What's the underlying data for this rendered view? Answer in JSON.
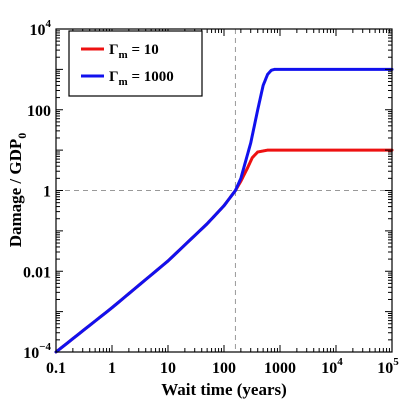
{
  "chart_data": {
    "type": "line",
    "xlabel": "Wait time (years)",
    "ylabel": {
      "main": "Damage / GDP",
      "sub": "0"
    },
    "x_scale": "log",
    "y_scale": "log",
    "xlim": [
      0.1,
      100000
    ],
    "ylim": [
      0.0001,
      10000
    ],
    "x_ticks": [
      {
        "value": 0.1,
        "base": "0.1",
        "exp": ""
      },
      {
        "value": 1,
        "base": "1",
        "exp": ""
      },
      {
        "value": 10,
        "base": "10",
        "exp": ""
      },
      {
        "value": 100,
        "base": "100",
        "exp": ""
      },
      {
        "value": 1000,
        "base": "1000",
        "exp": ""
      },
      {
        "value": 10000,
        "base": "10",
        "exp": "4"
      },
      {
        "value": 100000,
        "base": "10",
        "exp": "5"
      }
    ],
    "y_ticks": [
      {
        "value": 0.0001,
        "base": "10",
        "exp": "−4"
      },
      {
        "value": 0.01,
        "base": "0.01",
        "exp": ""
      },
      {
        "value": 1,
        "base": "1",
        "exp": ""
      },
      {
        "value": 100,
        "base": "100",
        "exp": ""
      },
      {
        "value": 10000,
        "base": "10",
        "exp": "4"
      }
    ],
    "reference_lines": {
      "vertical_x": 160,
      "horizontal_y": 1
    },
    "legend": {
      "position": "top-left"
    },
    "series": [
      {
        "name": {
          "main": "Γ",
          "sub": "m",
          "rest": " = 10"
        },
        "color": "#ee1111",
        "x": [
          0.1,
          1,
          10,
          50,
          100,
          160,
          200,
          260,
          320,
          400,
          600,
          1000,
          100000
        ],
        "y": [
          0.0001,
          0.00125,
          0.018,
          0.15,
          0.42,
          1,
          1.7,
          3.5,
          6.5,
          9,
          10,
          10,
          10
        ]
      },
      {
        "name": {
          "main": "Γ",
          "sub": "m",
          "rest": " = 1000"
        },
        "color": "#1111ee",
        "x": [
          0.1,
          1,
          10,
          50,
          100,
          160,
          200,
          300,
          400,
          500,
          600,
          700,
          800,
          1000,
          100000
        ],
        "y": [
          0.0001,
          0.00125,
          0.018,
          0.15,
          0.42,
          1,
          2,
          15,
          100,
          400,
          750,
          950,
          1000,
          1000,
          1000
        ]
      }
    ]
  }
}
